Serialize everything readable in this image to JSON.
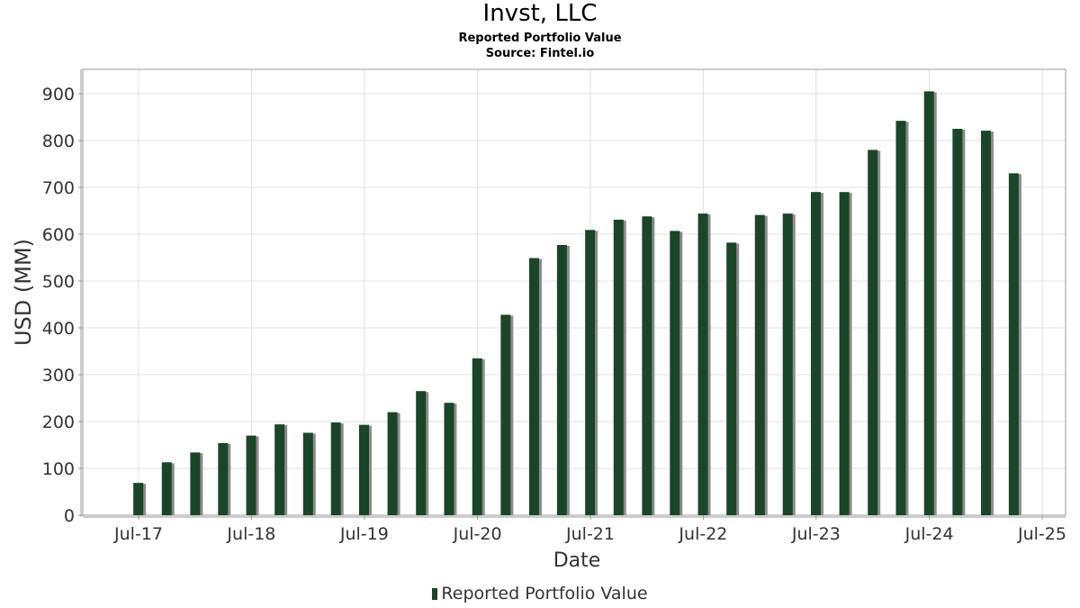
{
  "title": "Invst, LLC",
  "subtitle": "Reported Portfolio Value",
  "source": "Source: Fintel.io",
  "colors": {
    "bar": "#184626",
    "shadow": "#8c8c8c",
    "grid": "#e0e0e0",
    "axis": "#999999"
  },
  "chart_data": {
    "type": "bar",
    "xlabel": "Date",
    "ylabel": "USD (MM)",
    "ylim": [
      0,
      950
    ],
    "yticks": [
      0,
      100,
      200,
      300,
      400,
      500,
      600,
      700,
      800,
      900
    ],
    "xlim": [
      "2017-04-15",
      "2025-07-01"
    ],
    "xticks": [
      {
        "label": "Jul-17",
        "date": "2017-07-01"
      },
      {
        "label": "Jul-18",
        "date": "2018-07-01"
      },
      {
        "label": "Jul-19",
        "date": "2019-07-01"
      },
      {
        "label": "Jul-20",
        "date": "2020-07-01"
      },
      {
        "label": "Jul-21",
        "date": "2021-07-01"
      },
      {
        "label": "Jul-22",
        "date": "2022-07-01"
      },
      {
        "label": "Jul-23",
        "date": "2023-07-01"
      },
      {
        "label": "Jul-24",
        "date": "2024-07-01"
      },
      {
        "label": "Jul-25",
        "date": "2025-07-01"
      }
    ],
    "grid": true,
    "legend_position": "bottom",
    "series": [
      {
        "name": "Reported Portfolio Value",
        "x": [
          "2017-06-30",
          "2017-09-30",
          "2017-12-31",
          "2018-03-31",
          "2018-06-30",
          "2018-09-30",
          "2018-12-31",
          "2019-03-31",
          "2019-06-30",
          "2019-09-30",
          "2019-12-31",
          "2020-03-31",
          "2020-06-30",
          "2020-09-30",
          "2020-12-31",
          "2021-03-31",
          "2021-06-30",
          "2021-09-30",
          "2021-12-31",
          "2022-03-31",
          "2022-06-30",
          "2022-09-30",
          "2022-12-31",
          "2023-03-31",
          "2023-06-30",
          "2023-09-30",
          "2023-12-31",
          "2024-03-31",
          "2024-06-30",
          "2024-09-30",
          "2024-12-31",
          "2025-03-31"
        ],
        "values": [
          69,
          113,
          134,
          154,
          170,
          194,
          176,
          198,
          193,
          220,
          265,
          240,
          335,
          428,
          549,
          577,
          609,
          631,
          638,
          607,
          644,
          582,
          641,
          644,
          690,
          690,
          780,
          842,
          905,
          825,
          821,
          730
        ]
      }
    ]
  }
}
